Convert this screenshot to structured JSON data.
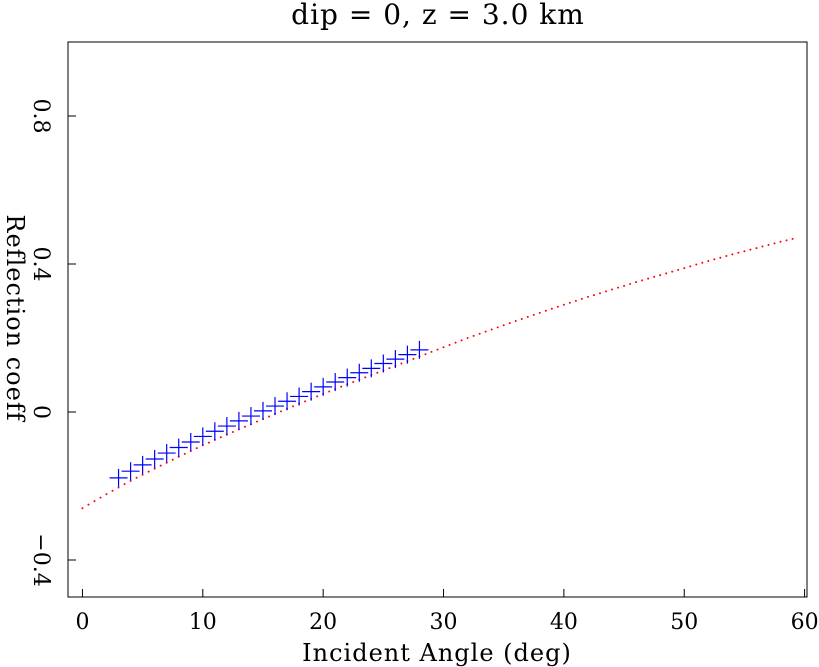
{
  "chart_data": {
    "type": "scatter",
    "title": "dip = 0, z = 3.0 km",
    "xlabel": "Incident Angle (deg)",
    "ylabel": "Reflection coeff",
    "xlim": [
      -1.2,
      60.2
    ],
    "ylim": [
      -0.5,
      1.0
    ],
    "x_ticks": [
      {
        "value": 0,
        "label": "0"
      },
      {
        "value": 10,
        "label": "10"
      },
      {
        "value": 20,
        "label": "20"
      },
      {
        "value": 30,
        "label": "30"
      },
      {
        "value": 40,
        "label": "40"
      },
      {
        "value": 50,
        "label": "50"
      },
      {
        "value": 60,
        "label": "60"
      }
    ],
    "y_ticks": [
      {
        "value": -0.4,
        "label": "−0.4"
      },
      {
        "value": 0,
        "label": "0"
      },
      {
        "value": 0.4,
        "label": "0.4"
      },
      {
        "value": 0.8,
        "label": "0.8"
      }
    ],
    "grid": false,
    "series": [
      {
        "style": "dotted-line",
        "color": "#ff0000",
        "x": [
          0,
          2,
          4,
          6,
          8,
          10,
          12,
          14,
          16,
          18,
          20,
          22,
          24,
          26,
          28,
          30,
          32,
          34,
          36,
          38,
          40,
          42,
          44,
          46,
          48,
          50,
          52,
          54,
          56,
          58,
          59
        ],
        "y": [
          -0.26,
          -0.222,
          -0.186,
          -0.153,
          -0.121,
          -0.09,
          -0.061,
          -0.033,
          -0.005,
          0.022,
          0.049,
          0.075,
          0.1,
          0.125,
          0.15,
          0.175,
          0.2,
          0.223,
          0.246,
          0.268,
          0.29,
          0.311,
          0.331,
          0.351,
          0.37,
          0.389,
          0.408,
          0.426,
          0.443,
          0.46,
          0.468
        ]
      },
      {
        "style": "plus-markers",
        "color": "#0000ff",
        "x": [
          3,
          4,
          5,
          6,
          7,
          8,
          9,
          10,
          11,
          12,
          13,
          14,
          15,
          16,
          17,
          18,
          19,
          20,
          21,
          22,
          23,
          24,
          25,
          26,
          27,
          28
        ],
        "y": [
          -0.178,
          -0.16,
          -0.143,
          -0.127,
          -0.111,
          -0.096,
          -0.081,
          -0.066,
          -0.052,
          -0.038,
          -0.024,
          -0.011,
          0.003,
          0.016,
          0.029,
          0.042,
          0.055,
          0.068,
          0.081,
          0.093,
          0.106,
          0.118,
          0.131,
          0.143,
          0.155,
          0.168
        ]
      }
    ]
  }
}
